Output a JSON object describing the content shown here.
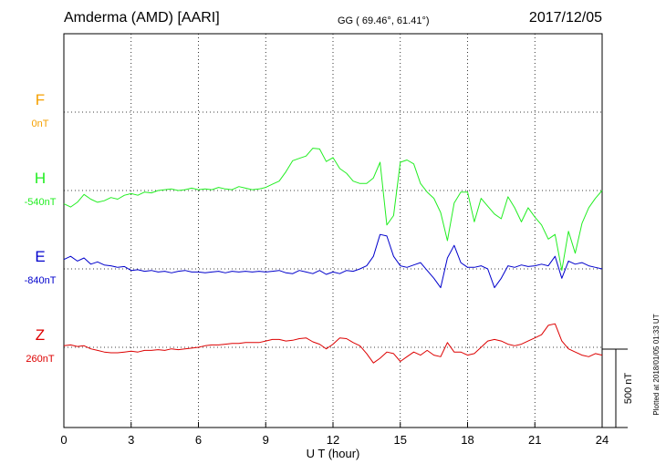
{
  "header": {
    "station": "Amderma (AMD)  [AARI]",
    "coords": "GG ( 69.46°,  61.41°)",
    "date": "2017/12/05"
  },
  "plotted_note": "Plotted at 2018/01/05 01:33 UT",
  "scale_bar_label": "500 nT",
  "chart_data": {
    "type": "line",
    "xlabel": "U T (hour)",
    "xlim": [
      0,
      24
    ],
    "xticks": [
      "0",
      "3",
      "6",
      "9",
      "12",
      "15",
      "18",
      "21",
      "24"
    ],
    "grid": true,
    "y_unit": "nT",
    "scale_bar_nT": 500,
    "series": [
      {
        "name": "F",
        "baseline_label": "0nT",
        "color": "#f5a000",
        "row": 1,
        "x": [],
        "y": []
      },
      {
        "name": "H",
        "baseline_label": "-540nT",
        "color": "#22ee22",
        "row": 2,
        "x": [
          0,
          0.3,
          0.6,
          0.9,
          1.2,
          1.5,
          1.8,
          2.1,
          2.4,
          2.7,
          3.0,
          3.3,
          3.6,
          3.9,
          4.2,
          4.5,
          4.8,
          5.1,
          5.4,
          5.7,
          6.0,
          6.3,
          6.6,
          6.9,
          7.2,
          7.5,
          7.8,
          8.1,
          8.4,
          8.7,
          9.0,
          9.3,
          9.6,
          9.9,
          10.2,
          10.5,
          10.8,
          11.1,
          11.4,
          11.7,
          12.0,
          12.3,
          12.6,
          12.9,
          13.2,
          13.5,
          13.8,
          14.1,
          14.4,
          14.7,
          15.0,
          15.3,
          15.6,
          15.9,
          16.2,
          16.5,
          16.8,
          17.1,
          17.4,
          17.7,
          18.0,
          18.3,
          18.6,
          18.9,
          19.2,
          19.5,
          19.8,
          20.1,
          20.4,
          20.7,
          21.0,
          21.3,
          21.6,
          21.9,
          22.2,
          22.5,
          22.8,
          23.1,
          23.4,
          23.7,
          24.0
        ],
        "y": [
          -85,
          -105,
          -75,
          -25,
          -55,
          -75,
          -65,
          -45,
          -55,
          -30,
          -20,
          -30,
          -10,
          -15,
          0,
          5,
          10,
          0,
          5,
          15,
          5,
          10,
          5,
          20,
          10,
          5,
          25,
          15,
          5,
          10,
          20,
          40,
          60,
          120,
          190,
          205,
          220,
          270,
          265,
          185,
          210,
          140,
          110,
          60,
          45,
          45,
          80,
          180,
          -220,
          -160,
          180,
          195,
          170,
          45,
          -10,
          -50,
          -140,
          -320,
          -80,
          -10,
          -10,
          -200,
          -50,
          -100,
          -150,
          -180,
          -40,
          -110,
          -200,
          -110,
          -170,
          -220,
          -310,
          -280,
          -510,
          -260,
          -400,
          -210,
          -110,
          -50,
          0
        ]
      },
      {
        "name": "E",
        "baseline_label": "-840nT",
        "color": "#0000cc",
        "row": 3,
        "x": [
          0,
          0.3,
          0.6,
          0.9,
          1.2,
          1.5,
          1.8,
          2.1,
          2.4,
          2.7,
          3.0,
          3.3,
          3.6,
          3.9,
          4.2,
          4.5,
          4.8,
          5.1,
          5.4,
          5.7,
          6.0,
          6.3,
          6.6,
          6.9,
          7.2,
          7.5,
          7.8,
          8.1,
          8.4,
          8.7,
          9.0,
          9.3,
          9.6,
          9.9,
          10.2,
          10.5,
          10.8,
          11.1,
          11.4,
          11.7,
          12.0,
          12.3,
          12.6,
          12.9,
          13.2,
          13.5,
          13.8,
          14.1,
          14.4,
          14.7,
          15.0,
          15.3,
          15.6,
          15.9,
          16.2,
          16.5,
          16.8,
          17.1,
          17.4,
          17.7,
          18.0,
          18.3,
          18.6,
          18.9,
          19.2,
          19.5,
          19.8,
          20.1,
          20.4,
          20.7,
          21.0,
          21.3,
          21.6,
          21.9,
          22.2,
          22.5,
          22.8,
          23.1,
          23.4,
          23.7,
          24.0
        ],
        "y": [
          60,
          80,
          50,
          70,
          30,
          45,
          25,
          20,
          10,
          15,
          -10,
          -5,
          -15,
          -10,
          -20,
          -15,
          -25,
          -15,
          -10,
          -20,
          -20,
          -25,
          -20,
          -15,
          -25,
          -15,
          -20,
          -15,
          -20,
          -15,
          -20,
          -15,
          -10,
          -25,
          -30,
          -10,
          -20,
          -30,
          -10,
          -35,
          -20,
          -30,
          -10,
          -15,
          0,
          20,
          80,
          220,
          210,
          80,
          20,
          10,
          25,
          40,
          -10,
          -60,
          -120,
          70,
          150,
          40,
          10,
          10,
          20,
          0,
          -120,
          -60,
          20,
          10,
          25,
          15,
          20,
          30,
          20,
          80,
          -60,
          50,
          30,
          40,
          20,
          10,
          0
        ]
      },
      {
        "name": "Z",
        "baseline_label": "260nT",
        "color": "#dd0000",
        "row": 4,
        "x": [
          0,
          0.3,
          0.6,
          0.9,
          1.2,
          1.5,
          1.8,
          2.1,
          2.4,
          2.7,
          3.0,
          3.3,
          3.6,
          3.9,
          4.2,
          4.5,
          4.8,
          5.1,
          5.4,
          5.7,
          6.0,
          6.3,
          6.6,
          6.9,
          7.2,
          7.5,
          7.8,
          8.1,
          8.4,
          8.7,
          9.0,
          9.3,
          9.6,
          9.9,
          10.2,
          10.5,
          10.8,
          11.1,
          11.4,
          11.7,
          12.0,
          12.3,
          12.6,
          12.9,
          13.2,
          13.5,
          13.8,
          14.1,
          14.4,
          14.7,
          15.0,
          15.3,
          15.6,
          15.9,
          16.2,
          16.5,
          16.8,
          17.1,
          17.4,
          17.7,
          18.0,
          18.3,
          18.6,
          18.9,
          19.2,
          19.5,
          19.8,
          20.1,
          20.4,
          20.7,
          21.0,
          21.3,
          21.6,
          21.9,
          22.2,
          22.5,
          22.8,
          23.1,
          23.4,
          23.7,
          24.0
        ],
        "y": [
          10,
          15,
          5,
          10,
          -10,
          -20,
          -30,
          -35,
          -35,
          -30,
          -25,
          -30,
          -20,
          -20,
          -15,
          -20,
          -10,
          -15,
          -10,
          -5,
          0,
          10,
          15,
          15,
          20,
          25,
          25,
          30,
          30,
          30,
          40,
          50,
          50,
          40,
          45,
          55,
          60,
          35,
          20,
          -10,
          20,
          60,
          55,
          30,
          10,
          -40,
          -100,
          -70,
          -30,
          -40,
          -90,
          -60,
          -30,
          -50,
          -20,
          -50,
          -60,
          30,
          -30,
          -30,
          -50,
          -40,
          0,
          40,
          50,
          40,
          20,
          10,
          20,
          40,
          60,
          80,
          140,
          150,
          40,
          -10,
          -30,
          -50,
          -60,
          -40,
          -50
        ]
      }
    ]
  }
}
